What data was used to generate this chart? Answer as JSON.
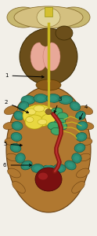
{
  "bg_color": "#f2efe8",
  "head_plate_color": "#d4c080",
  "head_plate_edge": "#8a7030",
  "head_wing_color": "#c8b870",
  "head_wing_edge": "#8a7030",
  "oesophagus_color": "#c8b820",
  "oesophagus_small": "#d4c030",
  "thorax_color": "#6b4e1a",
  "thorax_edge": "#3a2800",
  "pink_color": "#e8a898",
  "pink_edge": "#c07060",
  "neck_color": "#8a5a18",
  "neck_edge": "#5a3a00",
  "abdomen_color": "#b07830",
  "abdomen_edge": "#6a4010",
  "teal_color": "#2a8a70",
  "teal_edge": "#1a5a48",
  "teal_seg_color": "#38a088",
  "crop_color": "#e8d840",
  "crop_edge": "#b0a000",
  "ventriculus_color": "#40a868",
  "ventriculus_edge": "#206040",
  "malpighian_color": "#c8b820",
  "provent_color": "#8a6828",
  "intestine_color": "#8B1a10",
  "rectum_color": "#7a1010",
  "rectum_edge": "#4a0808",
  "label_color": "#000000",
  "label_fs": 5.0
}
